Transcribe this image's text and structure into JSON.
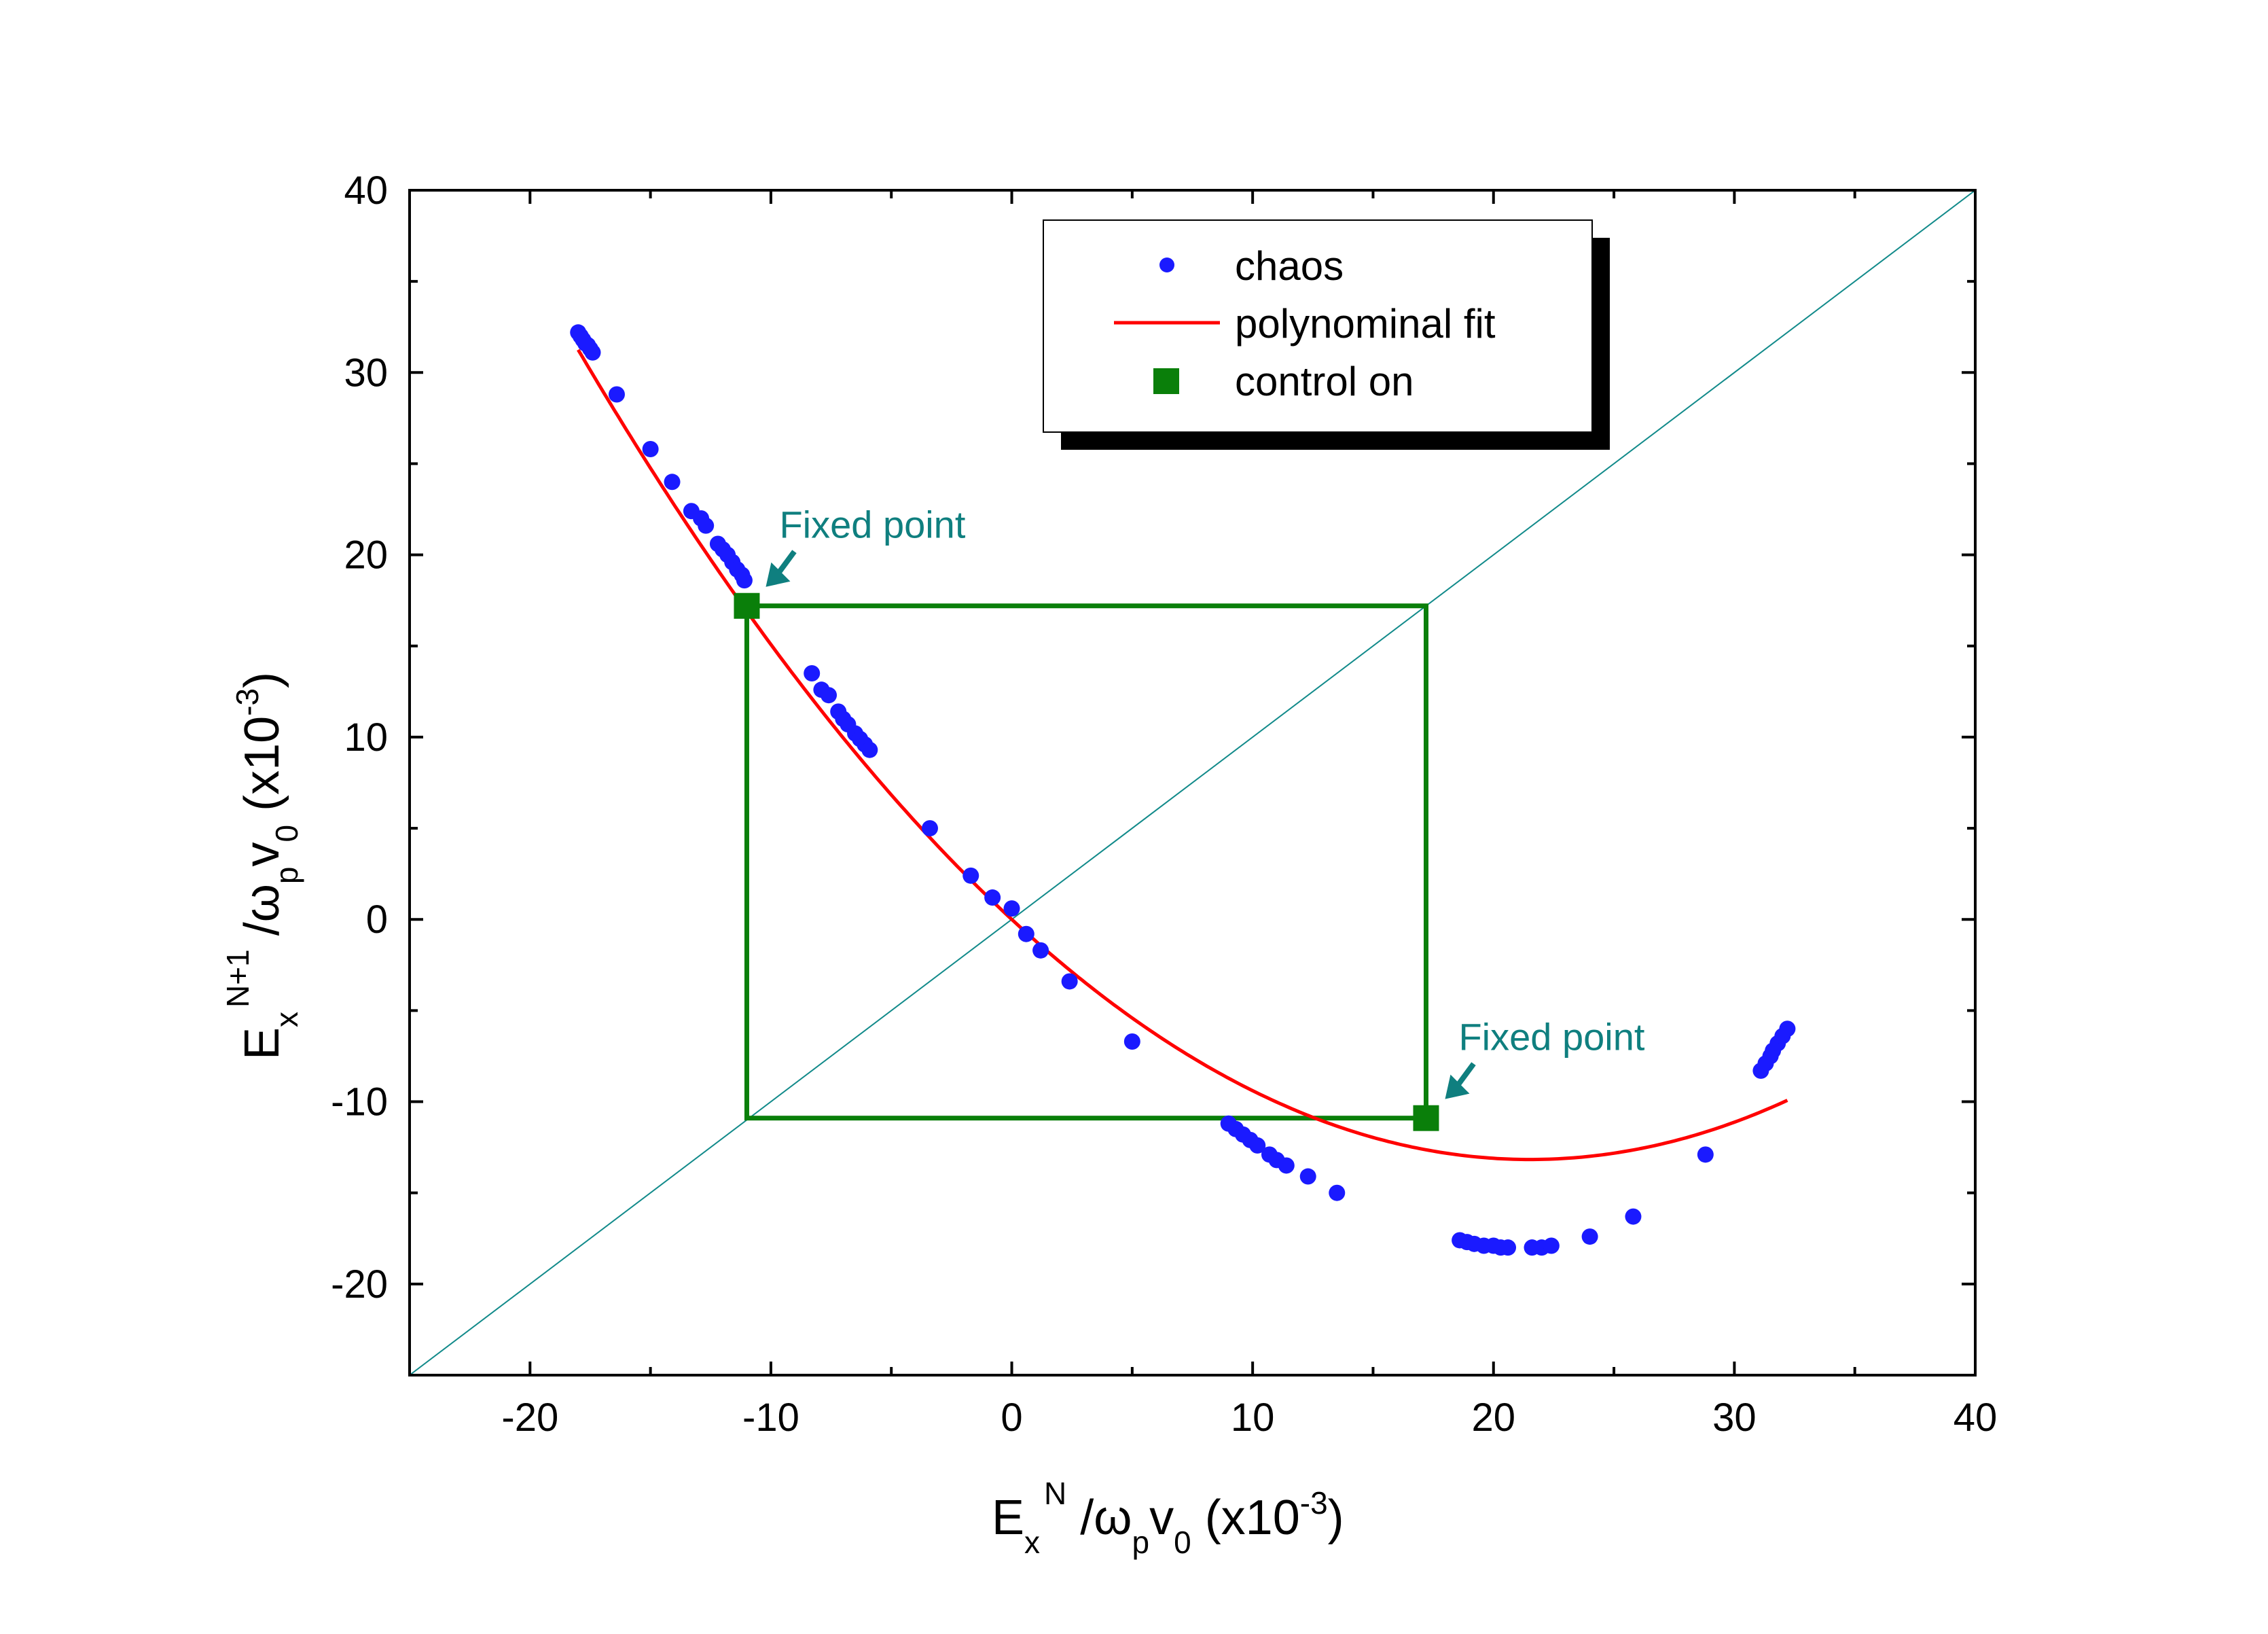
{
  "chart_data": {
    "type": "scatter",
    "xlim": [
      -25,
      40
    ],
    "ylim": [
      -25,
      40
    ],
    "x_ticks": [
      "-20",
      "-10",
      "0",
      "10",
      "20",
      "30",
      "40"
    ],
    "y_ticks": [
      "-20",
      "-10",
      "0",
      "10",
      "20",
      "30",
      "40"
    ],
    "x_tick_values": [
      -20,
      -10,
      0,
      10,
      20,
      30,
      40
    ],
    "y_tick_values": [
      -20,
      -10,
      0,
      10,
      20,
      30,
      40
    ],
    "xlabel": {
      "base": "E",
      "sub1": "x",
      "sup1": "N",
      "mid": " /ω",
      "sub2": "p",
      "mid2": "v",
      "sub3": "0",
      "tail": " (x10",
      "sup2": "-3",
      "close": ")"
    },
    "ylabel": {
      "base": "E",
      "sub1": "x",
      "sup1": "N+1",
      "mid": " /ω",
      "sub2": "p",
      "mid2": "v",
      "sub3": "0",
      "tail": " (x10",
      "sup2": "-3",
      "close": ")"
    },
    "grid": false,
    "legend_position": "top-right",
    "legend": [
      {
        "label": "chaos",
        "marker": "circle"
      },
      {
        "label": "polynominal fit",
        "marker": "line"
      },
      {
        "label": "control on",
        "marker": "square"
      }
    ],
    "colors": {
      "chaos": "#1a1aff",
      "fit": "#ff0000",
      "control": "#0a7f0a",
      "diagonal": "#118a8a",
      "annotation": "#0f7f7f"
    },
    "series": [
      {
        "name": "chaos",
        "points": [
          [
            -18.0,
            32.2
          ],
          [
            -17.9,
            32.0
          ],
          [
            -17.8,
            31.8
          ],
          [
            -17.7,
            31.6
          ],
          [
            -17.6,
            31.5
          ],
          [
            -17.5,
            31.3
          ],
          [
            -17.4,
            31.1
          ],
          [
            -16.4,
            28.8
          ],
          [
            -15.0,
            25.8
          ],
          [
            -14.1,
            24.0
          ],
          [
            -13.3,
            22.4
          ],
          [
            -12.9,
            22.0
          ],
          [
            -12.7,
            21.6
          ],
          [
            -12.2,
            20.6
          ],
          [
            -12.0,
            20.3
          ],
          [
            -11.8,
            20.0
          ],
          [
            -11.6,
            19.6
          ],
          [
            -11.4,
            19.2
          ],
          [
            -11.2,
            18.9
          ],
          [
            -11.1,
            18.6
          ],
          [
            -8.3,
            13.5
          ],
          [
            -7.9,
            12.6
          ],
          [
            -7.6,
            12.3
          ],
          [
            -7.2,
            11.4
          ],
          [
            -7.0,
            11.0
          ],
          [
            -6.8,
            10.7
          ],
          [
            -6.5,
            10.2
          ],
          [
            -6.3,
            9.9
          ],
          [
            -6.1,
            9.6
          ],
          [
            -5.9,
            9.3
          ],
          [
            -3.4,
            5.0
          ],
          [
            -1.7,
            2.4
          ],
          [
            -0.8,
            1.2
          ],
          [
            0.0,
            0.6
          ],
          [
            0.6,
            -0.8
          ],
          [
            1.2,
            -1.7
          ],
          [
            2.4,
            -3.4
          ],
          [
            5.0,
            -6.7
          ],
          [
            9.0,
            -11.2
          ],
          [
            9.3,
            -11.5
          ],
          [
            9.6,
            -11.8
          ],
          [
            9.9,
            -12.1
          ],
          [
            10.2,
            -12.4
          ],
          [
            10.7,
            -12.9
          ],
          [
            11.0,
            -13.2
          ],
          [
            11.4,
            -13.5
          ],
          [
            12.3,
            -14.1
          ],
          [
            13.5,
            -15.0
          ],
          [
            18.6,
            -17.6
          ],
          [
            18.9,
            -17.7
          ],
          [
            19.2,
            -17.8
          ],
          [
            19.6,
            -17.9
          ],
          [
            20.0,
            -17.9
          ],
          [
            20.3,
            -18.0
          ],
          [
            20.6,
            -18.0
          ],
          [
            21.6,
            -18.0
          ],
          [
            22.0,
            -18.0
          ],
          [
            22.4,
            -17.9
          ],
          [
            24.0,
            -17.4
          ],
          [
            25.8,
            -16.3
          ],
          [
            28.8,
            -12.9
          ],
          [
            31.1,
            -8.3
          ],
          [
            31.3,
            -7.9
          ],
          [
            31.5,
            -7.5
          ],
          [
            31.6,
            -7.2
          ],
          [
            31.8,
            -6.8
          ],
          [
            32.0,
            -6.4
          ],
          [
            32.2,
            -6.0
          ]
        ]
      },
      {
        "name": "polynominal fit",
        "x_range": [
          -18.0,
          32.2
        ],
        "poly_coeffs": [
          0.0,
          -1.224,
          0.02844
        ]
      },
      {
        "name": "control on",
        "points": [
          [
            -11.0,
            17.2
          ],
          [
            17.2,
            -10.9
          ]
        ]
      }
    ],
    "control_cycle": {
      "x_min": -11.0,
      "x_max": 17.2,
      "y_min": -10.9,
      "y_max": 17.2
    },
    "diagonal": [
      [
        -25,
        -25
      ],
      [
        40,
        40
      ]
    ],
    "annotations": [
      {
        "text": "Fixed point",
        "target": [
          -11.0,
          17.2
        ]
      },
      {
        "text": "Fixed point",
        "target": [
          17.2,
          -10.9
        ]
      }
    ]
  }
}
